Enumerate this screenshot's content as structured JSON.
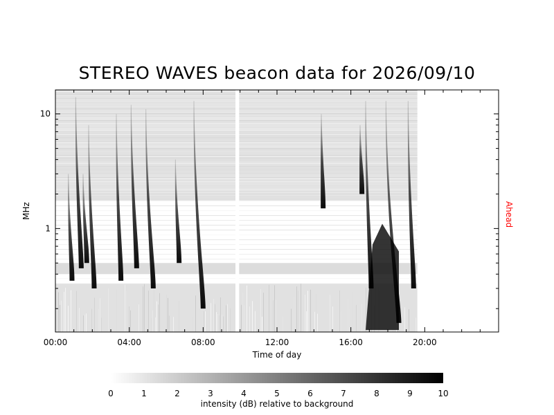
{
  "chart_data": {
    "type": "heatmap",
    "title": "STEREO WAVES beacon data for 2026/09/10",
    "xlabel": "Time of day",
    "ylabel": "MHz",
    "right_label": "Ahead",
    "right_label_color": "#ff0000",
    "x_unit": "hours",
    "xlim": [
      0,
      24
    ],
    "x_ticks": [
      {
        "value": 0,
        "label": "00:00"
      },
      {
        "value": 4,
        "label": "04:00"
      },
      {
        "value": 8,
        "label": "08:00"
      },
      {
        "value": 12,
        "label": "12:00"
      },
      {
        "value": 16,
        "label": "16:00"
      },
      {
        "value": 20,
        "label": "20:00"
      }
    ],
    "y_scale": "log",
    "ylim": [
      0.125,
      16.2
    ],
    "y_ticks": [
      {
        "value": 1,
        "label": "1"
      },
      {
        "value": 10,
        "label": "10"
      }
    ],
    "data_end_hour": 19.6,
    "data_gaps_hours": [
      [
        9.75,
        9.95
      ]
    ],
    "radio_bursts": [
      {
        "time": 0.7,
        "top_mhz": 3,
        "bottom_mhz": 0.35,
        "drift_hours": 0.2
      },
      {
        "time": 1.1,
        "top_mhz": 14,
        "bottom_mhz": 0.45,
        "drift_hours": 0.3
      },
      {
        "time": 1.5,
        "top_mhz": 3,
        "bottom_mhz": 0.5,
        "drift_hours": 0.2
      },
      {
        "time": 1.8,
        "top_mhz": 8,
        "bottom_mhz": 0.3,
        "drift_hours": 0.3
      },
      {
        "time": 3.3,
        "top_mhz": 10,
        "bottom_mhz": 0.35,
        "drift_hours": 0.25
      },
      {
        "time": 4.1,
        "top_mhz": 12,
        "bottom_mhz": 0.45,
        "drift_hours": 0.3
      },
      {
        "time": 4.9,
        "top_mhz": 11,
        "bottom_mhz": 0.3,
        "drift_hours": 0.4
      },
      {
        "time": 6.5,
        "top_mhz": 4,
        "bottom_mhz": 0.5,
        "drift_hours": 0.2
      },
      {
        "time": 7.5,
        "top_mhz": 13,
        "bottom_mhz": 0.2,
        "drift_hours": 0.5
      },
      {
        "time": 14.4,
        "top_mhz": 10,
        "bottom_mhz": 1.5,
        "drift_hours": 0.1
      },
      {
        "time": 16.5,
        "top_mhz": 8,
        "bottom_mhz": 2,
        "drift_hours": 0.1
      },
      {
        "time": 16.8,
        "top_mhz": 13,
        "bottom_mhz": 0.3,
        "drift_hours": 0.3
      },
      {
        "time": 17.9,
        "top_mhz": 13,
        "bottom_mhz": 0.15,
        "drift_hours": 0.7
      },
      {
        "time": 19.1,
        "top_mhz": 13,
        "bottom_mhz": 0.3,
        "drift_hours": 0.3
      }
    ],
    "intense_regions": [
      {
        "t0": 16.8,
        "t1": 18.6,
        "f_low_mhz": 0.13,
        "f_high_mhz": 1.1,
        "intensity_db": 9
      }
    ],
    "colorbar": {
      "min": 0,
      "max": 10,
      "ticks": [
        "0",
        "1",
        "2",
        "3",
        "4",
        "5",
        "6",
        "7",
        "8",
        "9",
        "10"
      ],
      "label": "intensity (dB) relative to background",
      "color_low": "#ffffff",
      "color_high": "#000000"
    }
  }
}
